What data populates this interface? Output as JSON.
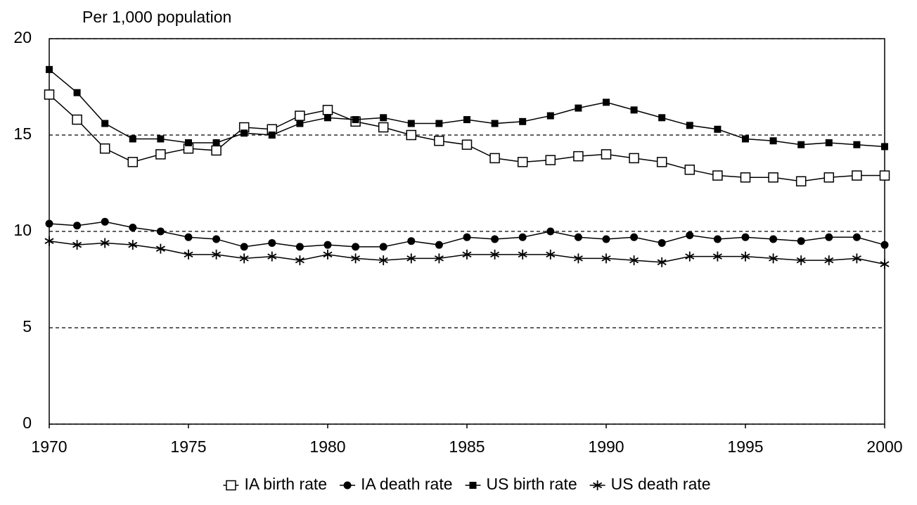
{
  "chart_data": {
    "type": "line",
    "y_label": "Per 1,000 population",
    "x": [
      1970,
      1971,
      1972,
      1973,
      1974,
      1975,
      1976,
      1977,
      1978,
      1979,
      1980,
      1981,
      1982,
      1983,
      1984,
      1985,
      1986,
      1987,
      1988,
      1989,
      1990,
      1991,
      1992,
      1993,
      1994,
      1995,
      1996,
      1997,
      1998,
      1999,
      2000
    ],
    "series": [
      {
        "name": "IA birth rate",
        "color": "#000000",
        "marker": "open-square",
        "values": [
          17.1,
          15.8,
          14.3,
          13.6,
          14.0,
          14.3,
          14.2,
          15.4,
          15.3,
          16.0,
          16.3,
          15.7,
          15.4,
          15.0,
          14.7,
          14.5,
          13.8,
          13.6,
          13.7,
          13.9,
          14.0,
          13.8,
          13.6,
          13.2,
          12.9,
          12.8,
          12.8,
          12.6,
          12.8,
          12.9,
          12.9
        ]
      },
      {
        "name": "IA death rate",
        "color": "#000000",
        "marker": "circle",
        "values": [
          10.4,
          10.3,
          10.5,
          10.2,
          10.0,
          9.7,
          9.6,
          9.2,
          9.4,
          9.2,
          9.3,
          9.2,
          9.2,
          9.5,
          9.3,
          9.7,
          9.6,
          9.7,
          10.0,
          9.7,
          9.6,
          9.7,
          9.4,
          9.8,
          9.6,
          9.7,
          9.6,
          9.5,
          9.7,
          9.7,
          9.3
        ]
      },
      {
        "name": "US birth rate",
        "color": "#000000",
        "marker": "square",
        "values": [
          18.4,
          17.2,
          15.6,
          14.8,
          14.8,
          14.6,
          14.6,
          15.1,
          15.0,
          15.6,
          15.9,
          15.8,
          15.9,
          15.6,
          15.6,
          15.8,
          15.6,
          15.7,
          16.0,
          16.4,
          16.7,
          16.3,
          15.9,
          15.5,
          15.3,
          14.8,
          14.7,
          14.5,
          14.6,
          14.5,
          14.4
        ]
      },
      {
        "name": "US death rate",
        "color": "#000000",
        "marker": "star",
        "values": [
          9.5,
          9.3,
          9.4,
          9.3,
          9.1,
          8.8,
          8.8,
          8.6,
          8.7,
          8.5,
          8.8,
          8.6,
          8.5,
          8.6,
          8.6,
          8.8,
          8.8,
          8.8,
          8.8,
          8.6,
          8.6,
          8.5,
          8.4,
          8.7,
          8.7,
          8.7,
          8.6,
          8.5,
          8.5,
          8.6,
          8.3
        ]
      }
    ],
    "xlim": [
      1970,
      2000
    ],
    "xticks": [
      1970,
      1975,
      1980,
      1985,
      1990,
      1995,
      2000
    ],
    "ylim": [
      0,
      20
    ],
    "yticks": [
      0,
      5,
      10,
      15,
      20
    ],
    "grid": true,
    "legend": "bottom"
  }
}
